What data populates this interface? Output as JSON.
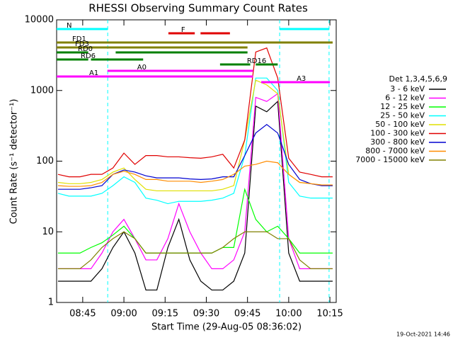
{
  "chart_data": {
    "type": "line",
    "title": "RHESSI Observing Summary Count Rates",
    "x_label": "Start Time (29-Aug-05 08:36:02)",
    "y_label": "Count Rate (s⁻¹ detector⁻¹)",
    "footer": "19-Oct-2021 14:46",
    "legend_title": "Det 1,3,4,5,6,9",
    "legend_position": "right",
    "log_y": true,
    "xlim": [
      515.5,
      617.3
    ],
    "ylim": [
      1,
      10000
    ],
    "yticks": [
      1,
      10,
      100,
      1000,
      10000
    ],
    "xticks": [
      {
        "value": 525,
        "label": "08:45"
      },
      {
        "value": 540,
        "label": "09:00"
      },
      {
        "value": 555,
        "label": "09:15"
      },
      {
        "value": 570,
        "label": "09:30"
      },
      {
        "value": 585,
        "label": "09:45"
      },
      {
        "value": 600,
        "label": "10:00"
      },
      {
        "value": 615,
        "label": "10:15"
      }
    ],
    "x": [
      516,
      520,
      524,
      528,
      532,
      536,
      540,
      544,
      548,
      552,
      556,
      560,
      564,
      568,
      572,
      576,
      580,
      584,
      588,
      592,
      596,
      600,
      604,
      608,
      612,
      616
    ],
    "series": [
      {
        "name": "3 - 6 keV",
        "color": "#000000",
        "values": [
          2,
          2,
          2,
          2,
          3,
          6,
          10,
          5,
          1.5,
          1.5,
          6,
          15,
          4,
          2,
          1.5,
          1.5,
          2,
          5,
          600,
          500,
          700,
          5,
          2,
          2,
          2,
          2
        ]
      },
      {
        "name": "6 - 12 keV",
        "color": "#ff00ff",
        "values": [
          3,
          3,
          3,
          3,
          5,
          10,
          15,
          8,
          4,
          4,
          8,
          25,
          10,
          5,
          3,
          3,
          4,
          10,
          800,
          700,
          900,
          8,
          3,
          3,
          3,
          3
        ]
      },
      {
        "name": "12 - 25 keV",
        "color": "#00ff00",
        "values": [
          5,
          5,
          5,
          6,
          7,
          9,
          12,
          8,
          5,
          5,
          5,
          5,
          5,
          5,
          5,
          6,
          6,
          40,
          15,
          10,
          12,
          8,
          5,
          5,
          5,
          5
        ]
      },
      {
        "name": "25 - 50 keV",
        "color": "#00ffff",
        "values": [
          35,
          32,
          32,
          32,
          35,
          45,
          60,
          50,
          30,
          28,
          25,
          27,
          27,
          27,
          28,
          30,
          35,
          120,
          1500,
          1500,
          1000,
          50,
          32,
          30,
          30,
          30
        ]
      },
      {
        "name": "50 - 100 keV",
        "color": "#e0e000",
        "values": [
          50,
          48,
          48,
          50,
          55,
          70,
          80,
          55,
          40,
          38,
          38,
          38,
          38,
          38,
          38,
          40,
          45,
          200,
          1400,
          1200,
          900,
          65,
          50,
          48,
          46,
          45
        ]
      },
      {
        "name": "100 - 300 keV",
        "color": "#e00000",
        "values": [
          65,
          60,
          60,
          65,
          65,
          80,
          130,
          90,
          120,
          120,
          115,
          115,
          112,
          110,
          115,
          125,
          80,
          200,
          3500,
          4000,
          1500,
          110,
          70,
          65,
          60,
          60
        ]
      },
      {
        "name": "300 - 800 keV",
        "color": "#0000d0",
        "values": [
          40,
          40,
          40,
          42,
          45,
          65,
          75,
          70,
          62,
          58,
          58,
          58,
          56,
          55,
          56,
          60,
          60,
          120,
          250,
          330,
          250,
          90,
          55,
          48,
          45,
          45
        ]
      },
      {
        "name": "800 - 7000 keV",
        "color": "#ff8c00",
        "values": [
          45,
          44,
          44,
          45,
          50,
          65,
          72,
          65,
          55,
          55,
          52,
          52,
          52,
          50,
          52,
          55,
          65,
          85,
          90,
          100,
          95,
          65,
          50,
          48,
          46,
          46
        ]
      },
      {
        "name": "7000 - 15000 keV",
        "color": "#808000",
        "values": [
          3,
          3,
          3,
          4,
          6,
          8,
          10,
          8,
          5,
          5,
          5,
          5,
          5,
          5,
          5,
          6,
          8,
          10,
          10,
          10,
          8,
          8,
          4,
          3,
          3,
          3
        ]
      }
    ],
    "flags": [
      {
        "label": "N",
        "color": "#00ffff",
        "segments": [
          [
            515.5,
            534.1
          ],
          [
            596.7,
            614.7
          ]
        ]
      },
      {
        "label": "F",
        "color": "#e00000",
        "segments": [
          [
            556.2,
            565.8
          ],
          [
            567.9,
            578.6
          ]
        ]
      },
      {
        "label": "FD1",
        "color": "#808000",
        "segments": [
          [
            515.5,
            616
          ]
        ]
      },
      {
        "label": "FD3",
        "color": "#808000",
        "segments": [
          [
            515.5,
            585
          ]
        ]
      },
      {
        "label": "RD0",
        "color": "#008000",
        "segments": [
          [
            515.5,
            527
          ],
          [
            537,
            585
          ]
        ]
      },
      {
        "label": "RD6",
        "color": "#008000",
        "segments": [
          [
            515.5,
            527
          ],
          [
            528,
            547
          ]
        ]
      },
      {
        "label": "RD16",
        "color": "#008000",
        "segments": [
          [
            575,
            586
          ],
          [
            588,
            596
          ]
        ]
      },
      {
        "label": "A0",
        "color": "#ff00ff",
        "segments": [
          [
            534,
            587
          ]
        ]
      },
      {
        "label": "A1",
        "color": "#ff00ff",
        "segments": [
          [
            515.5,
            587
          ]
        ]
      },
      {
        "label": "A3",
        "color": "#ff00ff",
        "segments": [
          [
            590,
            615
          ]
        ]
      }
    ],
    "vlines": [
      534.1,
      596.7,
      614.7
    ]
  }
}
